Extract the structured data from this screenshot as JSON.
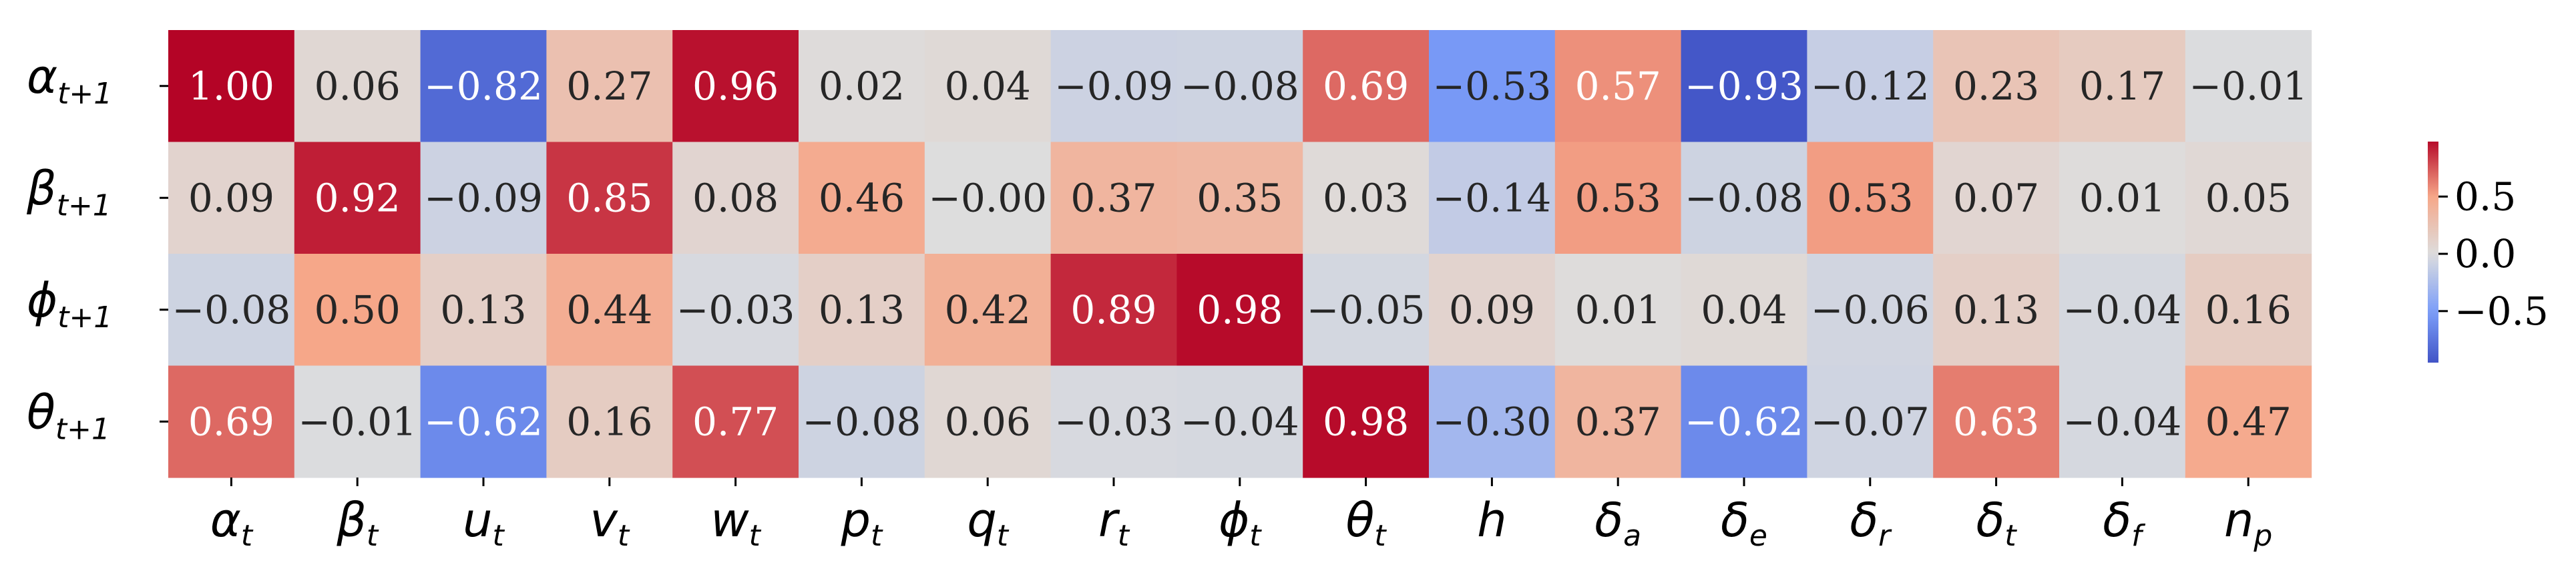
{
  "chart_data": {
    "type": "heatmap",
    "title": "",
    "xlabel": "",
    "ylabel": "",
    "colormap": "coolwarm",
    "vmin": -1.0,
    "vmax": 1.0,
    "rows": [
      {
        "base": "α",
        "sub": "t+1"
      },
      {
        "base": "β",
        "sub": "t+1"
      },
      {
        "base": "ϕ",
        "sub": "t+1"
      },
      {
        "base": "θ",
        "sub": "t+1"
      }
    ],
    "columns": [
      {
        "base": "α",
        "sub": "t"
      },
      {
        "base": "β",
        "sub": "t"
      },
      {
        "base": "u",
        "sub": "t"
      },
      {
        "base": "v",
        "sub": "t"
      },
      {
        "base": "w",
        "sub": "t"
      },
      {
        "base": "p",
        "sub": "t"
      },
      {
        "base": "q",
        "sub": "t"
      },
      {
        "base": "r",
        "sub": "t"
      },
      {
        "base": "ϕ",
        "sub": "t"
      },
      {
        "base": "θ",
        "sub": "t"
      },
      {
        "base": "h",
        "sub": ""
      },
      {
        "base": "δ",
        "sub": "a"
      },
      {
        "base": "δ",
        "sub": "e"
      },
      {
        "base": "δ",
        "sub": "r"
      },
      {
        "base": "δ",
        "sub": "t"
      },
      {
        "base": "δ",
        "sub": "f"
      },
      {
        "base": "n",
        "sub": "p"
      }
    ],
    "values": [
      [
        1.0,
        0.06,
        -0.82,
        0.27,
        0.96,
        0.02,
        0.04,
        -0.09,
        -0.08,
        0.69,
        -0.53,
        0.57,
        -0.93,
        -0.12,
        0.23,
        0.17,
        -0.01
      ],
      [
        0.09,
        0.92,
        -0.09,
        0.85,
        0.08,
        0.46,
        -0.0,
        0.37,
        0.35,
        0.03,
        -0.14,
        0.53,
        -0.08,
        0.53,
        0.07,
        0.01,
        0.05
      ],
      [
        -0.08,
        0.5,
        0.13,
        0.44,
        -0.03,
        0.13,
        0.42,
        0.89,
        0.98,
        -0.05,
        0.09,
        0.01,
        0.04,
        -0.06,
        0.13,
        -0.04,
        0.16
      ],
      [
        0.69,
        -0.01,
        -0.62,
        0.16,
        0.77,
        -0.08,
        0.06,
        -0.03,
        -0.04,
        0.98,
        -0.3,
        0.37,
        -0.62,
        -0.07,
        0.63,
        -0.04,
        0.47
      ]
    ],
    "colorbar": {
      "ticks": [
        0.5,
        0.0,
        -0.5
      ],
      "tick_labels": [
        "0.5",
        "0.0",
        "−0.5"
      ]
    }
  }
}
